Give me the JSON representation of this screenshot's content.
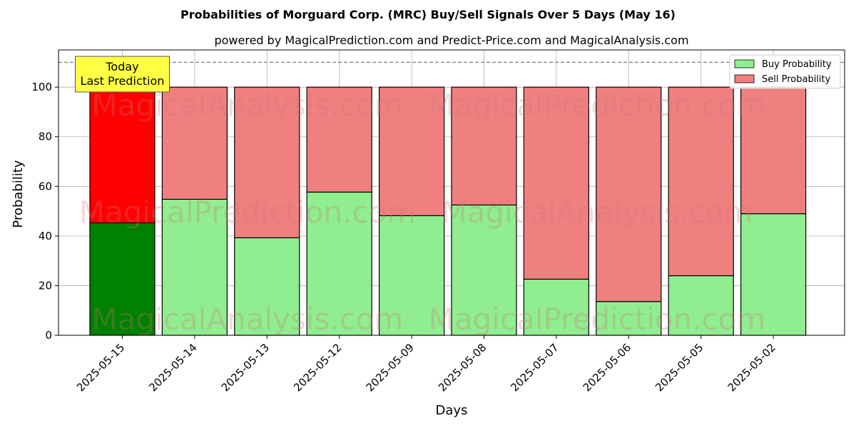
{
  "chart_data": {
    "type": "bar",
    "stacked": true,
    "title": "Probabilities of Morguard Corp. (MRC) Buy/Sell Signals Over 5 Days (May 16)",
    "subtitle": "powered by MagicalPrediction.com and Predict-Price.com and MagicalAnalysis.com",
    "xlabel": "Days",
    "ylabel": "Probability",
    "ylim": [
      0,
      115
    ],
    "yticks": [
      0,
      20,
      40,
      60,
      80,
      100
    ],
    "grid": true,
    "legend_position": "top-right",
    "categories": [
      "2025-05-15",
      "2025-05-14",
      "2025-05-13",
      "2025-05-12",
      "2025-05-09",
      "2025-05-08",
      "2025-05-07",
      "2025-05-06",
      "2025-05-05",
      "2025-05-02"
    ],
    "series": [
      {
        "name": "Buy Probability",
        "color": "#90ee90",
        "highlight_color": "#008000",
        "values": [
          45.3,
          54.8,
          39.3,
          57.7,
          48.2,
          52.5,
          22.6,
          13.6,
          24.0,
          49.0
        ]
      },
      {
        "name": "Sell Probability",
        "color": "#f08080",
        "highlight_color": "#ff0000",
        "values": [
          54.7,
          45.2,
          60.7,
          42.3,
          51.8,
          47.5,
          77.4,
          86.4,
          76.0,
          51.0
        ]
      }
    ],
    "reference_line": {
      "y": 110,
      "style": "dashed",
      "color": "#808080"
    },
    "annotation": {
      "lines": [
        "Today",
        "Last Prediction"
      ],
      "target_category": "2025-05-15",
      "background": "#ffff44"
    },
    "watermarks": [
      "MagicalAnalysis.com",
      "MagicalPrediction.com"
    ]
  }
}
